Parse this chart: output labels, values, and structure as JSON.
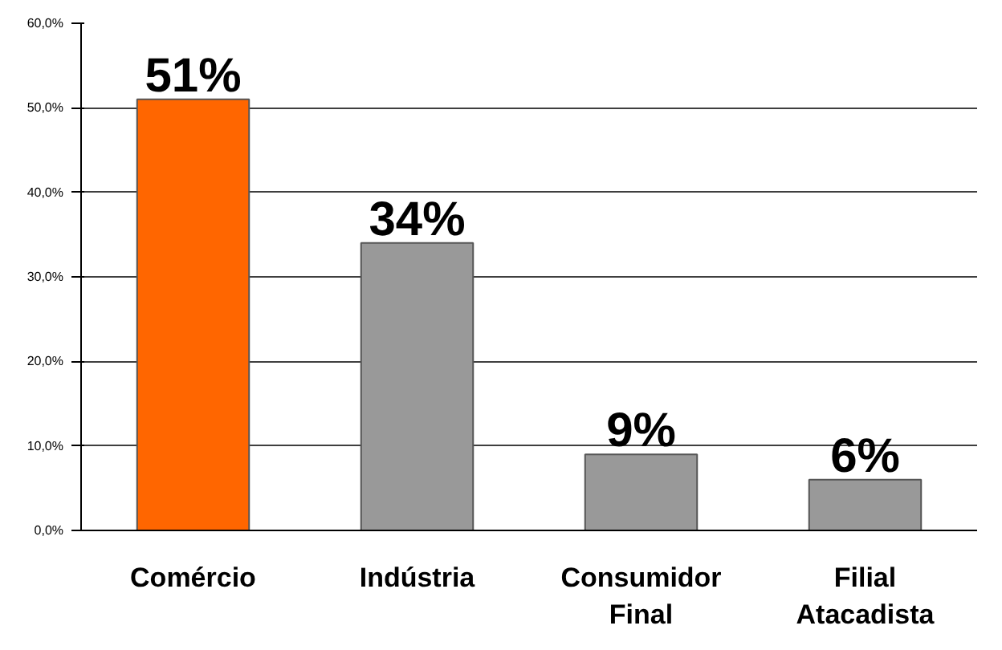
{
  "chart_data": {
    "type": "bar",
    "categories": [
      "Comércio",
      "Indústria",
      "Consumidor\nFinal",
      "Filial\nAtacadista"
    ],
    "values": [
      51,
      34,
      9,
      6
    ],
    "colors": [
      "#ff6600",
      "#999999",
      "#999999",
      "#999999"
    ],
    "ylim": [
      0,
      60
    ],
    "yticks": [
      {
        "value": 0,
        "label": "0,0%"
      },
      {
        "value": 10,
        "label": "10,0%"
      },
      {
        "value": 20,
        "label": "20,0%"
      },
      {
        "value": 30,
        "label": "30,0%"
      },
      {
        "value": 40,
        "label": "40,0%"
      },
      {
        "value": 50,
        "label": "50,0%"
      },
      {
        "value": 60,
        "label": "60,0%"
      }
    ],
    "value_labels": [
      "51%",
      "34%",
      "9%",
      "6%"
    ],
    "grid": "y"
  }
}
